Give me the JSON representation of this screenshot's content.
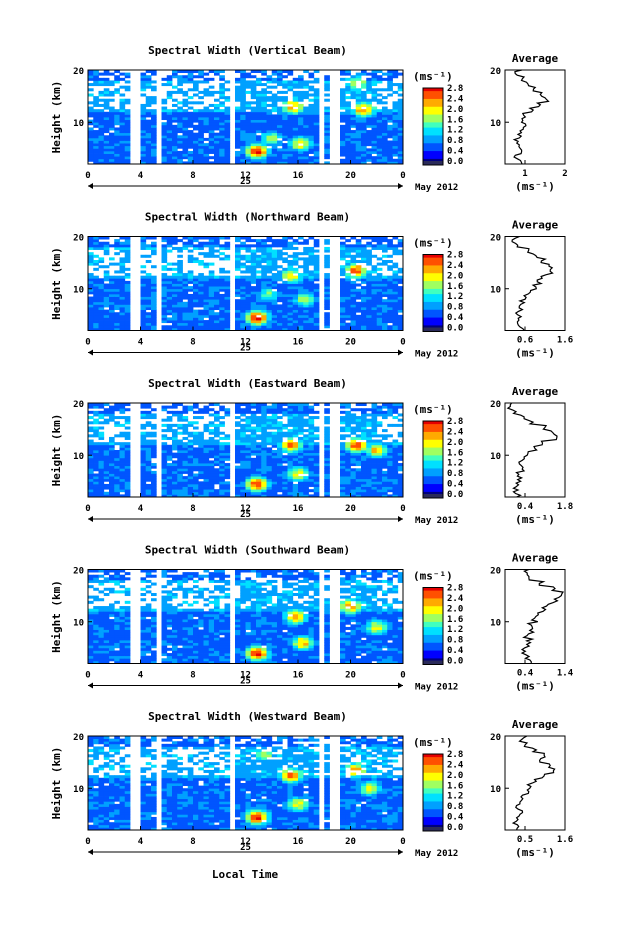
{
  "figure": {
    "xlabel": "Local Time",
    "date_label": "May 2012",
    "day_label": "25",
    "colorbar_unit": "(ms⁻¹)",
    "avg_title": "Average",
    "avg_xlabel": "(ms⁻¹)",
    "ylabel": "Height (km)"
  },
  "colormap": [
    "#00007f",
    "#0000ff",
    "#0055ff",
    "#00a0ff",
    "#00e0ff",
    "#40ffbf",
    "#a0ff60",
    "#ffff00",
    "#ffaa00",
    "#ff5000",
    "#e60000"
  ],
  "chart_data": [
    {
      "type": "heatmap",
      "title": "Spectral Width (Vertical Beam)",
      "xlabel": "Local Time",
      "ylabel": "Height (km)",
      "xlim": [
        0,
        24
      ],
      "ylim": [
        2,
        20
      ],
      "x_ticks": [
        "0",
        "4",
        "8",
        "12",
        "16",
        "20",
        "0"
      ],
      "y_ticks": [
        "10",
        "20"
      ],
      "colorbar": {
        "min": 0.0,
        "max": 2.8,
        "ticks": [
          "0.0",
          "0.4",
          "0.8",
          "1.2",
          "1.6",
          "2.0",
          "2.4",
          "2.8"
        ]
      },
      "gaps_hours": [
        [
          3.4,
          3.8
        ],
        [
          5.4,
          5.7
        ],
        [
          10.8,
          11.2
        ],
        [
          17.6,
          17.9
        ],
        [
          18.6,
          19.0
        ]
      ],
      "features": [
        {
          "t": 12.9,
          "h": 4.5,
          "v": 2.6
        },
        {
          "t": 15.6,
          "h": 13.0,
          "v": 2.2
        },
        {
          "t": 16.2,
          "h": 6.0,
          "v": 2.0
        },
        {
          "t": 21.0,
          "h": 12.5,
          "v": 2.3
        },
        {
          "t": 20.5,
          "h": 17.5,
          "v": 1.8
        },
        {
          "t": 14.0,
          "h": 7.0,
          "v": 1.6
        }
      ],
      "average": {
        "xlim": [
          0.4,
          2.0
        ],
        "x_ticks": [
          "1",
          "2"
        ],
        "heights": [
          2,
          3,
          4,
          5,
          6,
          7,
          8,
          9,
          10,
          11,
          12,
          13,
          14,
          15,
          16,
          17,
          18,
          19,
          20
        ],
        "values": [
          0.8,
          0.7,
          0.8,
          0.75,
          0.7,
          0.8,
          0.85,
          0.9,
          0.85,
          0.9,
          1.1,
          1.3,
          1.5,
          1.4,
          1.2,
          1.0,
          0.9,
          0.7,
          0.8
        ]
      }
    },
    {
      "type": "heatmap",
      "title": "Spectral Width (Northward Beam)",
      "xlabel": "Local Time",
      "ylabel": "Height (km)",
      "xlim": [
        0,
        24
      ],
      "ylim": [
        2,
        20
      ],
      "x_ticks": [
        "0",
        "4",
        "8",
        "12",
        "16",
        "20",
        "0"
      ],
      "y_ticks": [
        "10",
        "20"
      ],
      "colorbar": {
        "min": 0.0,
        "max": 2.8,
        "ticks": [
          "0.0",
          "0.4",
          "0.8",
          "1.2",
          "1.6",
          "2.0",
          "2.4",
          "2.8"
        ]
      },
      "gaps_hours": [
        [
          3.4,
          3.8
        ],
        [
          5.4,
          5.7
        ],
        [
          10.8,
          11.2
        ],
        [
          17.6,
          17.9
        ],
        [
          18.6,
          19.0
        ]
      ],
      "features": [
        {
          "t": 12.9,
          "h": 4.5,
          "v": 2.7
        },
        {
          "t": 15.5,
          "h": 12.5,
          "v": 2.0
        },
        {
          "t": 20.4,
          "h": 13.5,
          "v": 2.5
        },
        {
          "t": 16.5,
          "h": 8.0,
          "v": 1.6
        },
        {
          "t": 13.8,
          "h": 9.0,
          "v": 1.4
        }
      ],
      "average": {
        "xlim": [
          0.4,
          1.8
        ],
        "x_ticks": [
          "0.6",
          "1.6"
        ],
        "heights": [
          2,
          3,
          4,
          5,
          6,
          7,
          8,
          9,
          10,
          11,
          12,
          13,
          14,
          15,
          16,
          17,
          18,
          19,
          20
        ],
        "values": [
          0.8,
          0.7,
          0.75,
          0.7,
          0.75,
          0.8,
          0.9,
          1.0,
          1.1,
          1.2,
          1.3,
          1.5,
          1.45,
          1.3,
          1.1,
          0.9,
          0.7,
          0.6,
          0.7
        ]
      }
    },
    {
      "type": "heatmap",
      "title": "Spectral Width (Eastward Beam)",
      "xlabel": "Local Time",
      "ylabel": "Height (km)",
      "xlim": [
        0,
        24
      ],
      "ylim": [
        2,
        20
      ],
      "x_ticks": [
        "0",
        "4",
        "8",
        "12",
        "16",
        "20",
        "0"
      ],
      "y_ticks": [
        "10",
        "20"
      ],
      "colorbar": {
        "min": 0.0,
        "max": 2.8,
        "ticks": [
          "0.0",
          "0.4",
          "0.8",
          "1.2",
          "1.6",
          "2.0",
          "2.4",
          "2.8"
        ]
      },
      "gaps_hours": [
        [
          3.4,
          3.8
        ],
        [
          5.4,
          5.7
        ],
        [
          10.8,
          11.2
        ],
        [
          17.6,
          17.9
        ],
        [
          18.6,
          19.0
        ]
      ],
      "features": [
        {
          "t": 12.9,
          "h": 4.5,
          "v": 2.6
        },
        {
          "t": 15.5,
          "h": 12.0,
          "v": 2.3
        },
        {
          "t": 20.5,
          "h": 12.0,
          "v": 2.5
        },
        {
          "t": 16.0,
          "h": 6.5,
          "v": 1.9
        },
        {
          "t": 22.0,
          "h": 11.0,
          "v": 2.0
        }
      ],
      "average": {
        "xlim": [
          0.4,
          1.8
        ],
        "x_ticks": [
          "0.4",
          "1.8"
        ],
        "heights": [
          2,
          3,
          4,
          5,
          6,
          7,
          8,
          9,
          10,
          11,
          12,
          13,
          14,
          15,
          16,
          17,
          18,
          19,
          20
        ],
        "values": [
          0.7,
          0.65,
          0.7,
          0.75,
          0.7,
          0.8,
          0.75,
          0.85,
          0.9,
          1.1,
          1.3,
          1.6,
          1.5,
          1.3,
          1.0,
          0.8,
          0.6,
          0.5,
          0.55
        ]
      }
    },
    {
      "type": "heatmap",
      "title": "Spectral Width (Southward Beam)",
      "xlabel": "Local Time",
      "ylabel": "Height (km)",
      "xlim": [
        0,
        24
      ],
      "ylim": [
        2,
        20
      ],
      "x_ticks": [
        "0",
        "4",
        "8",
        "12",
        "16",
        "20",
        "0"
      ],
      "y_ticks": [
        "10",
        "20"
      ],
      "colorbar": {
        "min": 0.0,
        "max": 2.8,
        "ticks": [
          "0.0",
          "0.4",
          "0.8",
          "1.2",
          "1.6",
          "2.0",
          "2.4",
          "2.8"
        ]
      },
      "gaps_hours": [
        [
          3.4,
          3.8
        ],
        [
          5.4,
          5.7
        ],
        [
          10.8,
          11.2
        ],
        [
          17.6,
          17.9
        ],
        [
          18.6,
          19.0
        ]
      ],
      "features": [
        {
          "t": 12.9,
          "h": 4.0,
          "v": 2.6
        },
        {
          "t": 15.8,
          "h": 11.0,
          "v": 2.2
        },
        {
          "t": 16.4,
          "h": 6.0,
          "v": 2.1
        },
        {
          "t": 20.0,
          "h": 13.0,
          "v": 2.3
        },
        {
          "t": 22.0,
          "h": 9.0,
          "v": 1.8
        }
      ],
      "average": {
        "xlim": [
          0.4,
          1.4
        ],
        "x_ticks": [
          "0.4",
          "1.4"
        ],
        "heights": [
          2,
          3,
          4,
          5,
          6,
          7,
          8,
          9,
          10,
          11,
          12,
          13,
          14,
          15,
          16,
          17,
          18,
          19,
          20
        ],
        "values": [
          0.8,
          0.75,
          0.7,
          0.75,
          0.8,
          0.75,
          0.85,
          0.8,
          0.9,
          0.95,
          1.05,
          1.15,
          1.25,
          1.35,
          1.2,
          1.0,
          0.85,
          0.75,
          0.8
        ]
      }
    },
    {
      "type": "heatmap",
      "title": "Spectral Width (Westward Beam)",
      "xlabel": "Local Time",
      "ylabel": "Height (km)",
      "xlim": [
        0,
        24
      ],
      "ylim": [
        2,
        20
      ],
      "x_ticks": [
        "0",
        "4",
        "8",
        "12",
        "16",
        "20",
        "0"
      ],
      "y_ticks": [
        "10",
        "20"
      ],
      "colorbar": {
        "min": 0.0,
        "max": 2.8,
        "ticks": [
          "0.0",
          "0.4",
          "0.8",
          "1.2",
          "1.6",
          "2.0",
          "2.4",
          "2.8"
        ]
      },
      "gaps_hours": [
        [
          3.4,
          3.8
        ],
        [
          5.4,
          5.7
        ],
        [
          10.8,
          11.2
        ],
        [
          17.6,
          17.9
        ],
        [
          18.6,
          19.0
        ]
      ],
      "features": [
        {
          "t": 12.9,
          "h": 4.5,
          "v": 2.7
        },
        {
          "t": 15.5,
          "h": 12.5,
          "v": 2.3
        },
        {
          "t": 20.4,
          "h": 13.5,
          "v": 2.2
        },
        {
          "t": 16.0,
          "h": 7.0,
          "v": 1.8
        },
        {
          "t": 21.5,
          "h": 10.0,
          "v": 1.8
        },
        {
          "t": 13.5,
          "h": 16.5,
          "v": 1.6
        }
      ],
      "average": {
        "xlim": [
          0.4,
          1.8
        ],
        "x_ticks": [
          "0.5",
          "1.6"
        ],
        "heights": [
          2,
          3,
          4,
          5,
          6,
          7,
          8,
          9,
          10,
          11,
          12,
          13,
          14,
          15,
          16,
          17,
          18,
          19,
          20
        ],
        "values": [
          0.7,
          0.65,
          0.7,
          0.75,
          0.7,
          0.8,
          0.8,
          0.9,
          0.95,
          1.1,
          1.3,
          1.5,
          1.4,
          1.2,
          1.3,
          1.1,
          0.9,
          0.8,
          0.9
        ]
      }
    }
  ]
}
